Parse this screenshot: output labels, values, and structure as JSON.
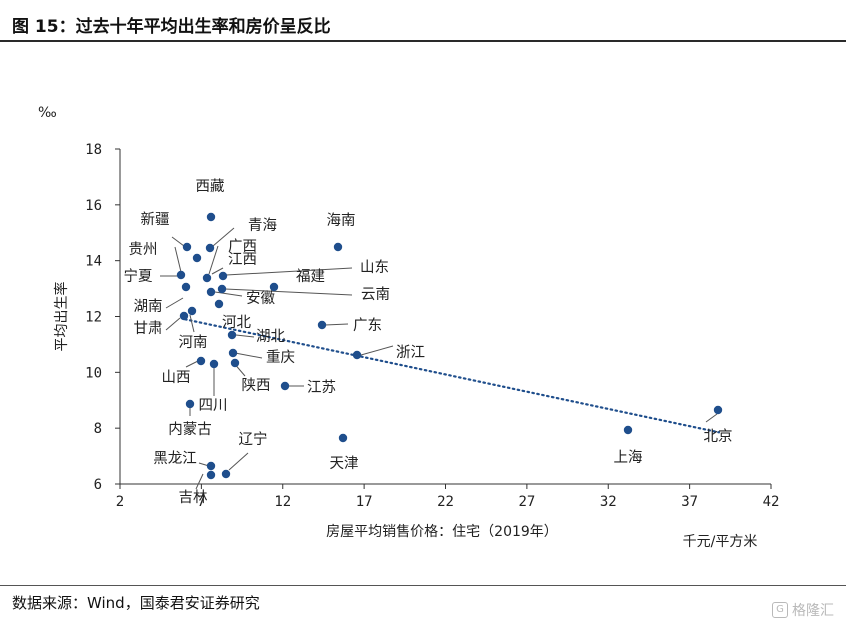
{
  "header": {
    "title": "图 15：过去十年平均出生率和房价呈反比"
  },
  "footer": {
    "source": "数据来源：Wind，国泰君安证券研究",
    "watermark": "格隆汇",
    "watermark_logo": "G"
  },
  "colors": {
    "point": "#1f4e8c",
    "trend": "#1f4e8c",
    "axis": "#333333"
  },
  "chart_data": {
    "type": "scatter",
    "title": "",
    "xlabel": "房屋平均销售价格：住宅（2019年）",
    "xunit": "千元/平方米",
    "ylabel": "平均出生率",
    "yunit": "‰",
    "xlim": [
      2,
      42
    ],
    "ylim": [
      6,
      18
    ],
    "xticks": [
      2,
      7,
      12,
      17,
      22,
      27,
      32,
      37,
      42
    ],
    "yticks": [
      6,
      8,
      10,
      12,
      14,
      16,
      18
    ],
    "grid": false,
    "trendline": {
      "style": "dotted",
      "x": [
        6.0,
        38.8
      ],
      "y": [
        11.9,
        7.85
      ]
    },
    "points": [
      {
        "name": "北京",
        "x": 38.8,
        "y": 8.6
      },
      {
        "name": "上海",
        "x": 33.1,
        "y": 7.9
      },
      {
        "name": "天津",
        "x": 15.6,
        "y": 7.6
      },
      {
        "name": "浙江",
        "x": 16.4,
        "y": 10.6
      },
      {
        "name": "广东",
        "x": 14.2,
        "y": 11.7
      },
      {
        "name": "海南",
        "x": 15.3,
        "y": 14.5
      },
      {
        "name": "福建",
        "x": 11.4,
        "y": 13.1
      },
      {
        "name": "江苏",
        "x": 12.0,
        "y": 9.5
      },
      {
        "name": "西藏",
        "x": 7.5,
        "y": 15.5
      },
      {
        "name": "新疆",
        "x": 6.2,
        "y": 14.4
      },
      {
        "name": "青海",
        "x": 7.4,
        "y": 14.4
      },
      {
        "name": "贵州",
        "x": 6.6,
        "y": 14.1
      },
      {
        "name": "广西",
        "x": 7.3,
        "y": 13.4
      },
      {
        "name": "宁夏",
        "x": 5.9,
        "y": 13.5
      },
      {
        "name": "江西",
        "x": 8.1,
        "y": 13.4
      },
      {
        "name": "山东",
        "x": 8.1,
        "y": 12.9
      },
      {
        "name": "云南",
        "x": 7.5,
        "y": 12.8
      },
      {
        "name": "湖南",
        "x": 6.2,
        "y": 13.0
      },
      {
        "name": "安徽",
        "x": 8.0,
        "y": 12.4
      },
      {
        "name": "甘肃",
        "x": 6.0,
        "y": 11.9
      },
      {
        "name": "河南",
        "x": 6.4,
        "y": 12.1
      },
      {
        "name": "河北",
        "x": 8.6,
        "y": 11.3
      },
      {
        "name": "湖北",
        "x": 8.6,
        "y": 10.6
      },
      {
        "name": "重庆",
        "x": 8.7,
        "y": 10.3
      },
      {
        "name": "山西",
        "x": 6.8,
        "y": 10.4
      },
      {
        "name": "陕西",
        "x": 7.7,
        "y": 10.3
      },
      {
        "name": "四川",
        "x": 6.3,
        "y": 8.8
      },
      {
        "name": "内蒙古",
        "x": 6.3,
        "y": 8.9
      },
      {
        "name": "辽宁",
        "x": 8.2,
        "y": 6.3
      },
      {
        "name": "黑龙江",
        "x": 7.5,
        "y": 6.6
      },
      {
        "name": "吉林",
        "x": 7.4,
        "y": 6.3
      }
    ]
  }
}
